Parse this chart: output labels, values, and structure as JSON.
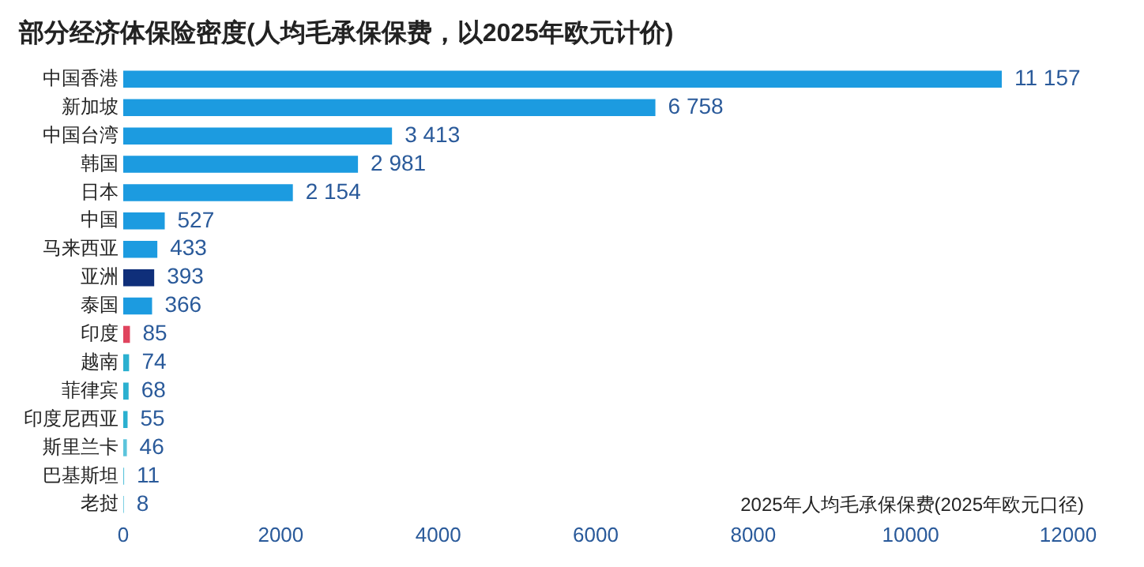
{
  "chart_data": {
    "type": "bar",
    "orientation": "horizontal",
    "title": "部分经济体保险密度(人均毛承保保费，以2025年欧元计价)",
    "xlabel": "2025年人均毛承保保费(2025年欧元口径)",
    "categories": [
      "中国香港",
      "新加坡",
      "中国台湾",
      "韩国",
      "日本",
      "中国",
      "马来西亚",
      "亚洲",
      "泰国",
      "印度",
      "越南",
      "菲律宾",
      "印度尼西亚",
      "斯里兰卡",
      "巴基斯坦",
      "老挝"
    ],
    "values": [
      11157,
      6758,
      3413,
      2981,
      2154,
      527,
      433,
      393,
      366,
      85,
      74,
      68,
      55,
      46,
      11,
      8
    ],
    "value_labels": [
      "11 157",
      "6 758",
      "3 413",
      "2 981",
      "2 154",
      "527",
      "433",
      "393",
      "366",
      "85",
      "74",
      "68",
      "55",
      "46",
      "11",
      "8"
    ],
    "colors": [
      "#1c9be0",
      "#1c9be0",
      "#1c9be0",
      "#1c9be0",
      "#1c9be0",
      "#1c9be0",
      "#1c9be0",
      "#0f2f7a",
      "#1c9be0",
      "#e0445e",
      "#2bb0d0",
      "#2bb0d0",
      "#2bb0d0",
      "#5cc4dc",
      "#5cc4dc",
      "#5cc4dc"
    ],
    "xlim": [
      0,
      12000
    ],
    "xticks": [
      0,
      2000,
      4000,
      6000,
      8000,
      10000,
      12000
    ],
    "grid": false,
    "legend": false
  }
}
